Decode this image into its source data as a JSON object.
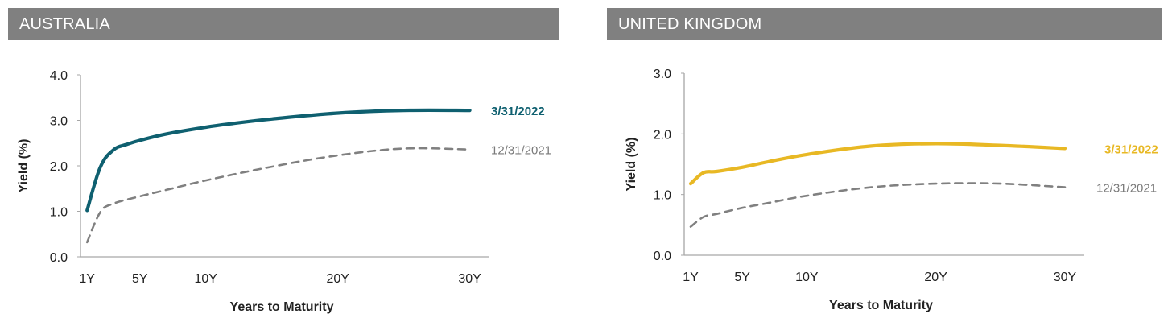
{
  "chart_data": [
    {
      "type": "line",
      "title": "AUSTRALIA",
      "xlabel": "Years to Maturity",
      "ylabel": "Yield (%)",
      "x_ticks": [
        {
          "value": 1,
          "label": "1Y"
        },
        {
          "value": 5,
          "label": "5Y"
        },
        {
          "value": 10,
          "label": "10Y"
        },
        {
          "value": 20,
          "label": "20Y"
        },
        {
          "value": 30,
          "label": "30Y"
        }
      ],
      "y_ticks": [
        {
          "value": 0,
          "label": "0.0"
        },
        {
          "value": 1,
          "label": "1.0"
        },
        {
          "value": 2,
          "label": "2.0"
        },
        {
          "value": 3,
          "label": "3.0"
        },
        {
          "value": 4,
          "label": "4.0"
        }
      ],
      "xlim": [
        0.5,
        31
      ],
      "ylim": [
        0,
        4
      ],
      "grid": false,
      "series": [
        {
          "name": "3/31/2022",
          "color": "#0f6070",
          "dash": "solid",
          "x": [
            1,
            2,
            3,
            4,
            5,
            7,
            10,
            12,
            15,
            20,
            25,
            30
          ],
          "y": [
            1.02,
            1.97,
            2.35,
            2.47,
            2.56,
            2.7,
            2.85,
            2.93,
            3.03,
            3.16,
            3.22,
            3.22
          ]
        },
        {
          "name": "12/31/2021",
          "color": "#808080",
          "dash": "dashed",
          "x": [
            1,
            2,
            3,
            5,
            7,
            10,
            15,
            20,
            25,
            30
          ],
          "y": [
            0.32,
            0.98,
            1.17,
            1.33,
            1.47,
            1.68,
            1.98,
            2.23,
            2.38,
            2.36
          ]
        }
      ]
    },
    {
      "type": "line",
      "title": "UNITED KINGDOM",
      "xlabel": "Years to Maturity",
      "ylabel": "Yield (%)",
      "x_ticks": [
        {
          "value": 1,
          "label": "1Y"
        },
        {
          "value": 5,
          "label": "5Y"
        },
        {
          "value": 10,
          "label": "10Y"
        },
        {
          "value": 20,
          "label": "20Y"
        },
        {
          "value": 30,
          "label": "30Y"
        }
      ],
      "y_ticks": [
        {
          "value": 0,
          "label": "0.0"
        },
        {
          "value": 1,
          "label": "1.0"
        },
        {
          "value": 2,
          "label": "2.0"
        },
        {
          "value": 3,
          "label": "3.0"
        }
      ],
      "xlim": [
        0.5,
        31
      ],
      "ylim": [
        0,
        3
      ],
      "grid": false,
      "series": [
        {
          "name": "3/31/2022",
          "color": "#e8b824",
          "dash": "solid",
          "x": [
            1,
            2,
            3,
            5,
            7,
            10,
            15,
            20,
            25,
            30
          ],
          "y": [
            1.18,
            1.36,
            1.38,
            1.45,
            1.54,
            1.66,
            1.8,
            1.84,
            1.81,
            1.76
          ]
        },
        {
          "name": "12/31/2021",
          "color": "#808080",
          "dash": "dashed",
          "x": [
            1,
            2,
            3,
            5,
            7,
            10,
            15,
            20,
            25,
            30
          ],
          "y": [
            0.47,
            0.63,
            0.68,
            0.78,
            0.86,
            0.98,
            1.12,
            1.18,
            1.18,
            1.12
          ]
        }
      ]
    }
  ]
}
